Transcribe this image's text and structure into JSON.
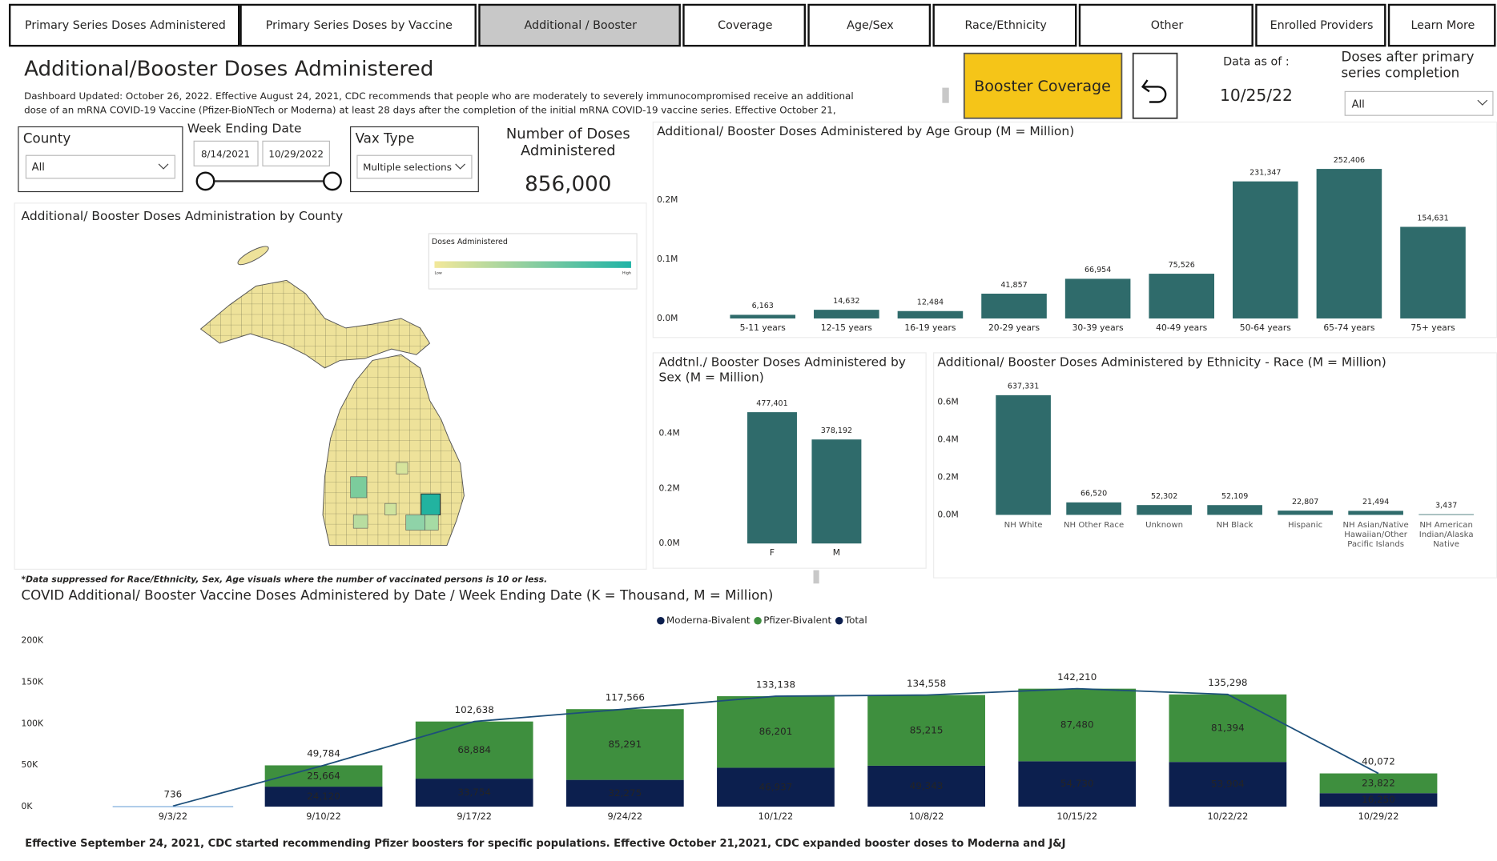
{
  "tabs": [
    "Primary Series Doses Administered",
    "Primary Series Doses by Vaccine",
    "Additional / Booster",
    "Coverage",
    "Age/Sex",
    "Race/Ethnicity",
    "Other",
    "Enrolled Providers",
    "Learn More"
  ],
  "header": {
    "title": "Additional/Booster Doses Administered",
    "description": [
      "Dashboard Updated: October 26, 2022. Effective August 24, 2021, CDC recommends that people who are moderately to severely immunocompromised receive an additional",
      "dose of an mRNA COVID-19 Vaccine (Pfizer-BioNTech or Moderna) at least 28 days after the completion of the initial mRNA COVID-19 vaccine series. Effective October 21,"
    ],
    "button": "Booster Coverage",
    "data_as_of_label": "Data as of :",
    "data_as_of": "10/25/22"
  },
  "filters": {
    "county": {
      "label": "County",
      "value": "All"
    },
    "week_ending": {
      "label": "Week Ending Date",
      "start": "8/14/2021",
      "end": "10/29/2022"
    },
    "vax_type": {
      "label": "Vax Type",
      "value": "Multiple selections"
    },
    "doses_after": {
      "label": "Doses after primary series completion",
      "value": "All"
    }
  },
  "kpi": {
    "label": "Number of Doses Administered",
    "value": "856,000"
  },
  "map": {
    "title": "Additional/ Booster Doses Administration by County",
    "legend_title": "Doses Administered",
    "legend_low": "Low",
    "legend_high": "High"
  },
  "note": "*Data suppressed for Race/Ethnicity, Sex, Age visuals where the number of vaccinated persons is 10 or less.",
  "footer": "Effective September 24, 2021, CDC started recommending Pfizer boosters for specific populations. Effective October 21,2021, CDC expanded booster doses to Moderna and J&J",
  "chart_data": [
    {
      "type": "bar",
      "title": "Additional/ Booster Doses Administered by Age Group (M = Million)",
      "categories": [
        "5-11 years",
        "12-15 years",
        "16-19 years",
        "20-29 years",
        "30-39 years",
        "40-49 years",
        "50-64 years",
        "65-74 years",
        "75+ years"
      ],
      "values": [
        6163,
        14632,
        12484,
        41857,
        66954,
        75526,
        231347,
        252406,
        154631
      ],
      "value_labels": [
        "6,163",
        "14,632",
        "12,484",
        "41,857",
        "66,954",
        "75,526",
        "231,347",
        "252,406",
        "154,631"
      ],
      "color": "#2f6b6b",
      "ylim": [
        0,
        280000
      ],
      "yticks": [
        {
          "value": 0,
          "label": "0.0M"
        },
        {
          "value": 100000,
          "label": "0.1M"
        },
        {
          "value": 200000,
          "label": "0.2M"
        }
      ]
    },
    {
      "type": "bar",
      "title": "Addtnl./ Booster Doses Administered by Sex (M = Million)",
      "categories": [
        "F",
        "M"
      ],
      "values": [
        477401,
        378192
      ],
      "value_labels": [
        "477,401",
        "378,192"
      ],
      "color": "#2f6b6b",
      "ylim": [
        0,
        520000
      ],
      "yticks": [
        {
          "value": 0,
          "label": "0.0M"
        },
        {
          "value": 200000,
          "label": "0.2M"
        },
        {
          "value": 400000,
          "label": "0.4M"
        }
      ]
    },
    {
      "type": "bar",
      "title": "Additional/ Booster Doses Administered by Ethnicity - Race (M = Million)",
      "categories": [
        "NH White",
        "NH Other Race",
        "Unknown",
        "NH Black",
        "Hispanic",
        "NH Asian/Native Hawaiian/Other Pacific Islands",
        "NH American Indian/Alaska Native"
      ],
      "values": [
        637331,
        66520,
        52302,
        52109,
        22807,
        21494,
        3437
      ],
      "value_labels": [
        "637,331",
        "66,520",
        "52,302",
        "52,109",
        "22,807",
        "21,494",
        "3,437"
      ],
      "color": "#2f6b6b",
      "ylim": [
        0,
        660000
      ],
      "yticks": [
        {
          "value": 0,
          "label": "0.0M"
        },
        {
          "value": 200000,
          "label": "0.2M"
        },
        {
          "value": 400000,
          "label": "0.4M"
        },
        {
          "value": 600000,
          "label": "0.6M"
        }
      ]
    },
    {
      "type": "combo",
      "title": "COVID Additional/ Booster Vaccine Doses Administered by Date / Week Ending Date (K = Thousand, M = Million)",
      "categories": [
        "9/3/22",
        "9/10/22",
        "9/17/22",
        "9/24/22",
        "10/1/22",
        "10/8/22",
        "10/15/22",
        "10/22/22",
        "10/29/22"
      ],
      "series": [
        {
          "name": "Moderna-Bivalent",
          "color": "#0c1f4e",
          "type": "bar",
          "values": [
            null,
            24120,
            33754,
            32275,
            46937,
            49343,
            54730,
            53904,
            16250
          ],
          "value_labels": [
            null,
            "24,120",
            "33,754",
            "32,275",
            "46,937",
            "49,343",
            "54,730",
            "53,904",
            "16,250"
          ]
        },
        {
          "name": "Pfizer-Bivalent",
          "color": "#3e8f3e",
          "type": "bar",
          "values": [
            null,
            25664,
            68884,
            85291,
            86201,
            85215,
            87480,
            81394,
            23822
          ],
          "value_labels": [
            null,
            "25,664",
            "68,884",
            "85,291",
            "86,201",
            "85,215",
            "87,480",
            "81,394",
            "23,822"
          ]
        },
        {
          "name": "Total",
          "color": "#1d4f7a",
          "type": "line",
          "values": [
            736,
            49784,
            102638,
            117566,
            133138,
            134558,
            142210,
            135298,
            40072
          ],
          "value_labels": [
            "736",
            "49,784",
            "102,638",
            "117,566",
            "133,138",
            "134,558",
            "142,210",
            "135,298",
            "40,072"
          ]
        }
      ],
      "ylim": [
        0,
        200000
      ],
      "yticks": [
        {
          "value": 0,
          "label": "0K"
        },
        {
          "value": 50000,
          "label": "50K"
        },
        {
          "value": 100000,
          "label": "100K"
        },
        {
          "value": 150000,
          "label": "150K"
        },
        {
          "value": 200000,
          "label": "200K"
        }
      ]
    }
  ]
}
